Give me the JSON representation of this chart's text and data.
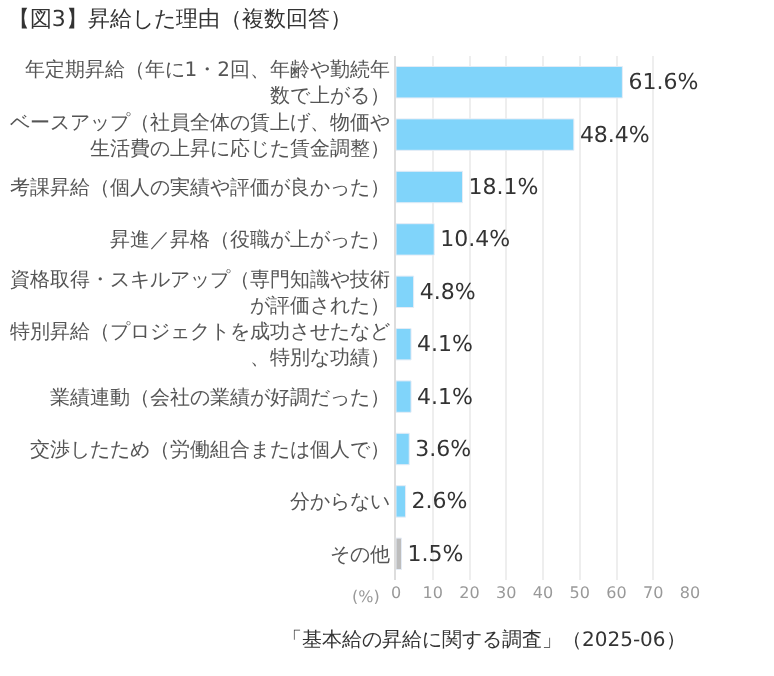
{
  "chart_data": {
    "type": "bar",
    "orientation": "horizontal",
    "title": "【図3】昇給した理由（複数回答）",
    "categories": [
      "年定期昇給（年に1・2回、年齢や勤続年数で上がる）",
      "ベースアップ（社員全体の賃上げ、物価や生活費の上昇に応じた賃金調整）",
      "考課昇給（個人の実績や評価が良かった）",
      "昇進／昇格（役職が上がった）",
      "資格取得・スキルアップ（専門知識や技術が評価された）",
      "特別昇給（プロジェクトを成功させたなど、特別な功績）",
      "業績連動（会社の業績が好調だった）",
      "交渉したため（労働組合または個人で）",
      "分からない",
      "その他"
    ],
    "values": [
      61.6,
      48.4,
      18.1,
      10.4,
      4.8,
      4.1,
      4.1,
      3.6,
      2.6,
      1.5
    ],
    "colors": [
      "#80d4fa",
      "#80d4fa",
      "#80d4fa",
      "#80d4fa",
      "#80d4fa",
      "#80d4fa",
      "#80d4fa",
      "#80d4fa",
      "#80d4fa",
      "#bdbdbd"
    ],
    "value_labels": [
      "61.6%",
      "48.4%",
      "18.1%",
      "10.4%",
      "4.8%",
      "4.1%",
      "4.1%",
      "3.6%",
      "2.6%",
      "1.5%"
    ],
    "xlabel": "(%)",
    "xlim": [
      0,
      80
    ],
    "xticks": [
      0,
      10,
      20,
      30,
      40,
      50,
      60,
      70,
      80
    ],
    "grid": "x",
    "legend": false,
    "annotations": [
      "「基本給の昇給に関する調査」（2025-06）"
    ]
  }
}
